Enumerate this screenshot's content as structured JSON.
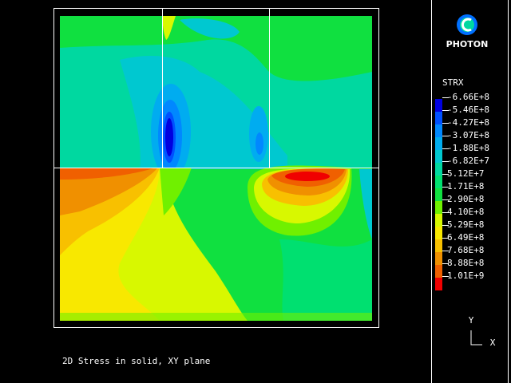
{
  "logo": {
    "text": "PHOTON"
  },
  "legend": {
    "title": "STRX",
    "entries": [
      {
        "label": "-6.66E+8",
        "color": "#0000e0"
      },
      {
        "label": "-5.46E+8",
        "color": "#0050ff"
      },
      {
        "label": "-4.27E+8",
        "color": "#0088ff"
      },
      {
        "label": "-3.07E+8",
        "color": "#00acf0"
      },
      {
        "label": "-1.88E+8",
        "color": "#00c8d0"
      },
      {
        "label": "-6.82E+7",
        "color": "#00d8a0"
      },
      {
        "label": "5.12E+7",
        "color": "#00e070"
      },
      {
        "label": "1.71E+8",
        "color": "#10e040"
      },
      {
        "label": "2.90E+8",
        "color": "#70f000"
      },
      {
        "label": "4.10E+8",
        "color": "#d8f800"
      },
      {
        "label": "5.29E+8",
        "color": "#f8e800"
      },
      {
        "label": "6.49E+8",
        "color": "#f8c000"
      },
      {
        "label": "7.68E+8",
        "color": "#f09000"
      },
      {
        "label": "8.88E+8",
        "color": "#f06000"
      },
      {
        "label": "1.01E+9",
        "color": "#f00000"
      }
    ]
  },
  "caption": "2D Stress in solid, XY plane",
  "axes": {
    "y": "Y",
    "x": "X"
  }
}
